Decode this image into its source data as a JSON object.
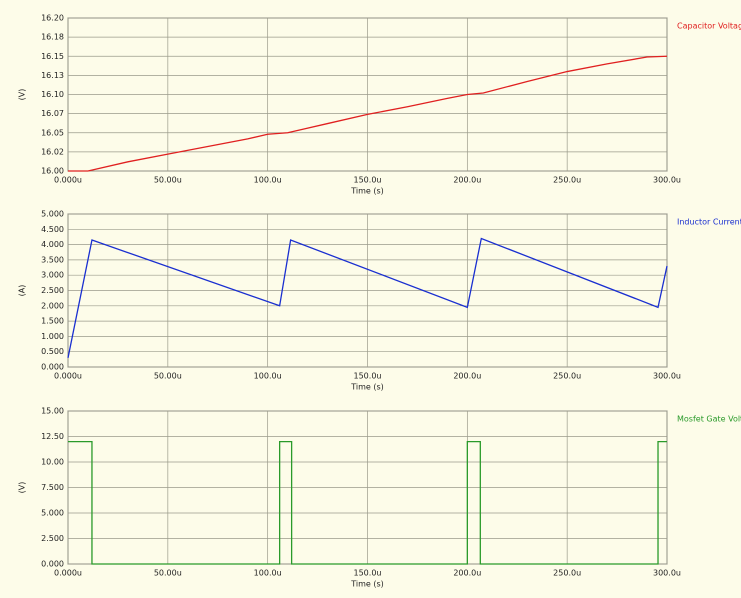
{
  "chart_data": [
    {
      "type": "line",
      "xlabel": "Time (s)",
      "ylabel": "(V)",
      "xlim": [
        0,
        300
      ],
      "ylim": [
        16.0,
        16.2
      ],
      "xticks": [
        {
          "value": 0,
          "label": "0.000u"
        },
        {
          "value": 50,
          "label": "50.00u"
        },
        {
          "value": 100,
          "label": "100.0u"
        },
        {
          "value": 150,
          "label": "150.0u"
        },
        {
          "value": 200,
          "label": "200.0u"
        },
        {
          "value": 250,
          "label": "250.0u"
        },
        {
          "value": 300,
          "label": "300.0u"
        }
      ],
      "yticks": [
        {
          "value": 16.0,
          "label": "16.00"
        },
        {
          "value": 16.025,
          "label": "16.02"
        },
        {
          "value": 16.05,
          "label": "16.05"
        },
        {
          "value": 16.075,
          "label": "16.07"
        },
        {
          "value": 16.1,
          "label": "16.10"
        },
        {
          "value": 16.125,
          "label": "16.13"
        },
        {
          "value": 16.15,
          "label": "16.15"
        },
        {
          "value": 16.175,
          "label": "16.18"
        },
        {
          "value": 16.2,
          "label": "16.20"
        }
      ],
      "grid": true,
      "x": [
        0,
        10,
        30,
        50,
        70,
        90,
        100,
        110,
        130,
        150,
        170,
        190,
        200,
        208,
        230,
        250,
        270,
        290,
        300
      ],
      "series": [
        {
          "name": "Capacitor Voltage",
          "color": "#e02020",
          "values": [
            16.0,
            16.0,
            16.012,
            16.022,
            16.032,
            16.042,
            16.048,
            16.05,
            16.062,
            16.074,
            16.084,
            16.095,
            16.1,
            16.102,
            16.117,
            16.13,
            16.14,
            16.149,
            16.15
          ]
        }
      ]
    },
    {
      "type": "line",
      "xlabel": "Time (s)",
      "ylabel": "(A)",
      "xlim": [
        0,
        300
      ],
      "ylim": [
        0,
        5
      ],
      "xticks": [
        {
          "value": 0,
          "label": "0.000u"
        },
        {
          "value": 50,
          "label": "50.00u"
        },
        {
          "value": 100,
          "label": "100.0u"
        },
        {
          "value": 150,
          "label": "150.0u"
        },
        {
          "value": 200,
          "label": "200.0u"
        },
        {
          "value": 250,
          "label": "250.0u"
        },
        {
          "value": 300,
          "label": "300.0u"
        }
      ],
      "yticks": [
        {
          "value": 0,
          "label": "0.000"
        },
        {
          "value": 0.5,
          "label": "0.500"
        },
        {
          "value": 1,
          "label": "1.000"
        },
        {
          "value": 1.5,
          "label": "1.500"
        },
        {
          "value": 2,
          "label": "2.000"
        },
        {
          "value": 2.5,
          "label": "2.500"
        },
        {
          "value": 3,
          "label": "3.000"
        },
        {
          "value": 3.5,
          "label": "3.500"
        },
        {
          "value": 4,
          "label": "4.000"
        },
        {
          "value": 4.5,
          "label": "4.500"
        },
        {
          "value": 5,
          "label": "5.000"
        }
      ],
      "grid": true,
      "x": [
        0,
        12,
        106,
        111.5,
        200,
        207,
        295.5,
        300
      ],
      "series": [
        {
          "name": "Inductor Current",
          "color": "#1a2fd0",
          "values": [
            0.3,
            4.15,
            2.0,
            4.15,
            1.95,
            4.2,
            1.95,
            3.3
          ]
        }
      ]
    },
    {
      "type": "line",
      "xlabel": "Time (s)",
      "ylabel": "(V)",
      "xlim": [
        0,
        300
      ],
      "ylim": [
        0,
        15
      ],
      "xticks": [
        {
          "value": 0,
          "label": "0.000u"
        },
        {
          "value": 50,
          "label": "50.00u"
        },
        {
          "value": 100,
          "label": "100.0u"
        },
        {
          "value": 150,
          "label": "150.0u"
        },
        {
          "value": 200,
          "label": "200.0u"
        },
        {
          "value": 250,
          "label": "250.0u"
        },
        {
          "value": 300,
          "label": "300.0u"
        }
      ],
      "yticks": [
        {
          "value": 0,
          "label": "0.000"
        },
        {
          "value": 2.5,
          "label": "2.500"
        },
        {
          "value": 5,
          "label": "5.000"
        },
        {
          "value": 7.5,
          "label": "7.500"
        },
        {
          "value": 10,
          "label": "10.00"
        },
        {
          "value": 12.5,
          "label": "12.50"
        },
        {
          "value": 15,
          "label": "15.00"
        }
      ],
      "grid": true,
      "x": [
        0,
        12,
        12,
        106,
        106,
        112,
        112,
        200,
        200,
        206.5,
        206.5,
        295.5,
        295.5,
        300
      ],
      "series": [
        {
          "name": "Mosfet Gate Voltage",
          "color": "#2a9a2a",
          "values": [
            12,
            12,
            0,
            0,
            12,
            12,
            0,
            0,
            12,
            12,
            0,
            0,
            12,
            12
          ]
        }
      ]
    }
  ]
}
